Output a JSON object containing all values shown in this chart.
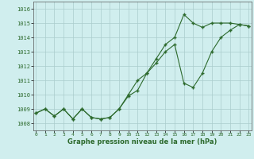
{
  "x": [
    0,
    1,
    2,
    3,
    4,
    5,
    6,
    7,
    8,
    9,
    10,
    11,
    12,
    13,
    14,
    15,
    16,
    17,
    18,
    19,
    20,
    21,
    22,
    23
  ],
  "line1": [
    1008.7,
    1009.0,
    1008.5,
    1009.0,
    1008.3,
    1009.0,
    1008.4,
    1008.3,
    1008.4,
    1009.0,
    1009.9,
    1010.3,
    1011.5,
    1012.5,
    1013.5,
    1014.0,
    1015.6,
    1015.0,
    1014.7,
    1015.0,
    1015.0,
    1015.0,
    1014.9,
    1014.8
  ],
  "line2": [
    1008.7,
    1009.0,
    1008.5,
    1009.0,
    1008.3,
    1009.0,
    1008.4,
    1008.3,
    1008.4,
    1009.0,
    1010.0,
    1011.0,
    1011.5,
    1012.2,
    1013.0,
    1013.5,
    1010.8,
    1010.5,
    1011.5,
    1013.0,
    1014.0,
    1014.5,
    1014.9,
    1014.8
  ],
  "line_color": "#2d6a2d",
  "bg_color": "#d0eeee",
  "grid_color": "#aacccc",
  "xlabel": "Graphe pression niveau de la mer (hPa)",
  "ylim": [
    1007.5,
    1016.5
  ],
  "yticks": [
    1008,
    1009,
    1010,
    1011,
    1012,
    1013,
    1014,
    1015,
    1016
  ],
  "xticks": [
    0,
    1,
    2,
    3,
    4,
    5,
    6,
    7,
    8,
    9,
    10,
    11,
    12,
    13,
    14,
    15,
    16,
    17,
    18,
    19,
    20,
    21,
    22,
    23
  ],
  "xlim": [
    -0.3,
    23.3
  ]
}
